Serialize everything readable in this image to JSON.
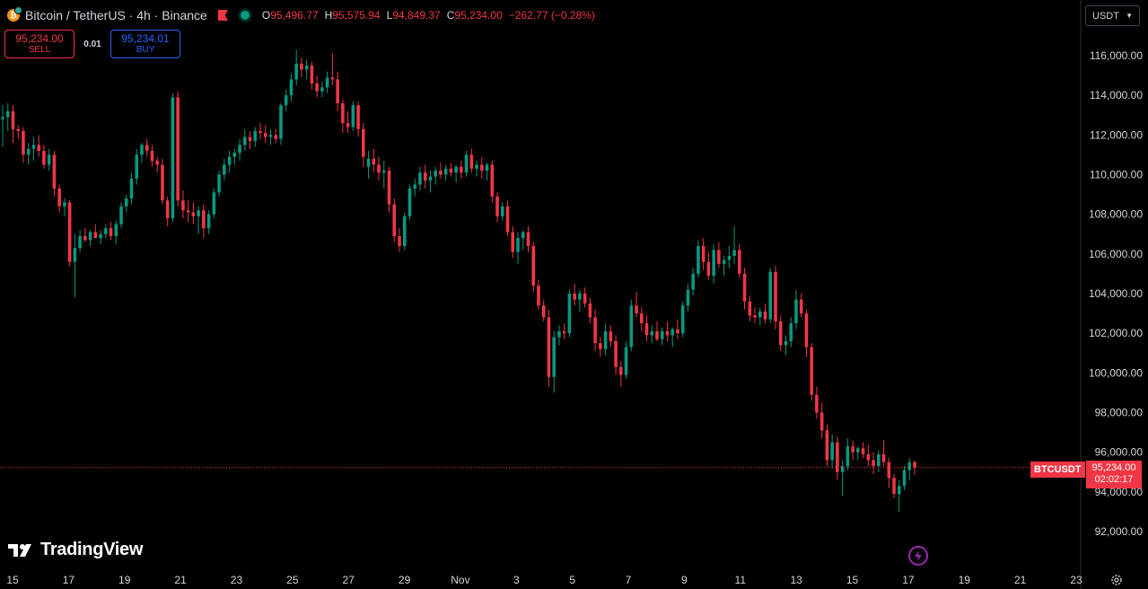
{
  "header": {
    "symbol_title": "Bitcoin / TetherUS · 4h · Binance",
    "coin_letter": "₿",
    "ohlc": {
      "open_label": "O",
      "open": "95,496.77",
      "high_label": "H",
      "high": "95,575.94",
      "low_label": "L",
      "low": "94,849.37",
      "close_label": "C",
      "close": "95,234.00",
      "change": "−262.77 (−0.28%)"
    }
  },
  "trade_panel": {
    "sell_price": "95,234.00",
    "sell_label": "SELL",
    "spread": "0.01",
    "buy_price": "95,234.01",
    "buy_label": "BUY"
  },
  "currency_selector": "USDT",
  "price_tag": {
    "symbol": "BTCUSDT",
    "price": "95,234.00",
    "countdown": "02:02:17"
  },
  "branding": {
    "logo_text": "TradingView"
  },
  "colors": {
    "up": "#089981",
    "down": "#f23645",
    "background": "#000000",
    "axis_text": "#d1d4dc"
  },
  "chart_data": {
    "type": "candlestick",
    "symbol": "BTCUSDT",
    "timeframe": "4h",
    "y_axis_ticks": [
      "116,000.00",
      "114,000.00",
      "112,000.00",
      "110,000.00",
      "108,000.00",
      "106,000.00",
      "104,000.00",
      "102,000.00",
      "100,000.00",
      "98,000.00",
      "96,000.00",
      "94,000.00",
      "92,000.00"
    ],
    "x_axis_ticks": [
      "15",
      "17",
      "19",
      "21",
      "23",
      "25",
      "27",
      "29",
      "Nov",
      "3",
      "5",
      "7",
      "9",
      "11",
      "13",
      "15",
      "17",
      "19",
      "21",
      "23"
    ],
    "ylim": [
      90500,
      118200
    ],
    "last_price": 95234.0,
    "candles": [
      [
        112800,
        113500,
        111400,
        112900
      ],
      [
        112900,
        113600,
        112200,
        113200
      ],
      [
        113200,
        113500,
        111600,
        112300
      ],
      [
        112300,
        112500,
        111800,
        112200
      ],
      [
        112200,
        112400,
        110600,
        111000
      ],
      [
        111000,
        111600,
        110500,
        111300
      ],
      [
        111300,
        111900,
        110700,
        111500
      ],
      [
        111500,
        112000,
        110900,
        111200
      ],
      [
        111200,
        111500,
        110300,
        110500
      ],
      [
        110500,
        111300,
        110200,
        111000
      ],
      [
        111000,
        111200,
        108900,
        109300
      ],
      [
        109300,
        109500,
        108100,
        108400
      ],
      [
        108400,
        108800,
        107900,
        108600
      ],
      [
        108600,
        108700,
        105400,
        105600
      ],
      [
        105600,
        107000,
        103800,
        106300
      ],
      [
        106300,
        107200,
        106100,
        106900
      ],
      [
        106900,
        107300,
        106600,
        106700
      ],
      [
        106700,
        107200,
        106400,
        107100
      ],
      [
        107100,
        107500,
        106800,
        106800
      ],
      [
        106800,
        107200,
        106500,
        107000
      ],
      [
        107000,
        107500,
        106800,
        107300
      ],
      [
        107300,
        107600,
        106700,
        106900
      ],
      [
        106900,
        107700,
        106500,
        107500
      ],
      [
        107500,
        108600,
        107300,
        108400
      ],
      [
        108400,
        109000,
        108100,
        108800
      ],
      [
        108800,
        110100,
        108500,
        109800
      ],
      [
        109800,
        111300,
        109500,
        111000
      ],
      [
        111000,
        111600,
        110600,
        111500
      ],
      [
        111500,
        111800,
        110900,
        111200
      ],
      [
        111200,
        111500,
        110400,
        110700
      ],
      [
        110700,
        110900,
        110100,
        110500
      ],
      [
        110500,
        110800,
        108500,
        108700
      ],
      [
        108700,
        108900,
        107400,
        107800
      ],
      [
        107800,
        114100,
        107600,
        113900
      ],
      [
        113900,
        114200,
        108400,
        108700
      ],
      [
        108700,
        109200,
        107800,
        108200
      ],
      [
        108200,
        108700,
        107600,
        108100
      ],
      [
        108100,
        108600,
        107500,
        107900
      ],
      [
        107900,
        108400,
        107000,
        108200
      ],
      [
        108200,
        108500,
        106800,
        107300
      ],
      [
        107300,
        108200,
        107000,
        108000
      ],
      [
        108000,
        109300,
        107800,
        109100
      ],
      [
        109100,
        110200,
        108900,
        110000
      ],
      [
        110000,
        110800,
        109700,
        110500
      ],
      [
        110500,
        111200,
        110100,
        110900
      ],
      [
        110900,
        111300,
        110500,
        111100
      ],
      [
        111100,
        111800,
        110700,
        111500
      ],
      [
        111500,
        112300,
        111200,
        111900
      ],
      [
        111900,
        112200,
        111300,
        111700
      ],
      [
        111700,
        112400,
        111400,
        112200
      ],
      [
        112200,
        112600,
        111800,
        112100
      ],
      [
        112100,
        112500,
        111600,
        111900
      ],
      [
        111900,
        112300,
        111500,
        112000
      ],
      [
        112000,
        112300,
        111600,
        111800
      ],
      [
        111800,
        113600,
        111500,
        113500
      ],
      [
        113500,
        114300,
        113200,
        114000
      ],
      [
        114000,
        115100,
        113700,
        114800
      ],
      [
        114800,
        116300,
        114500,
        115600
      ],
      [
        115600,
        115900,
        114900,
        115300
      ],
      [
        115300,
        115800,
        114800,
        115500
      ],
      [
        115500,
        115700,
        114300,
        114600
      ],
      [
        114600,
        115000,
        113900,
        114200
      ],
      [
        114200,
        114700,
        113900,
        114400
      ],
      [
        114400,
        115200,
        114100,
        114900
      ],
      [
        114900,
        116100,
        114500,
        114800
      ],
      [
        114800,
        115200,
        113200,
        113600
      ],
      [
        113600,
        113800,
        112100,
        112600
      ],
      [
        112600,
        113200,
        112100,
        112400
      ],
      [
        112400,
        113700,
        112200,
        113500
      ],
      [
        113500,
        113700,
        111900,
        112300
      ],
      [
        112300,
        112600,
        110400,
        110900
      ],
      [
        110400,
        111200,
        109800,
        110800
      ],
      [
        110800,
        111300,
        110100,
        110500
      ],
      [
        110500,
        110900,
        109700,
        110100
      ],
      [
        110100,
        110700,
        109300,
        110200
      ],
      [
        110200,
        110400,
        108100,
        108500
      ],
      [
        108500,
        108800,
        106600,
        106900
      ],
      [
        106900,
        107300,
        106100,
        106400
      ],
      [
        106400,
        108100,
        106200,
        107900
      ],
      [
        107900,
        109500,
        107700,
        109300
      ],
      [
        109300,
        109800,
        108900,
        109500
      ],
      [
        109500,
        110400,
        109200,
        110100
      ],
      [
        110100,
        110500,
        109300,
        109700
      ],
      [
        109700,
        110200,
        109100,
        109900
      ],
      [
        109900,
        110400,
        109500,
        110200
      ],
      [
        110200,
        110600,
        109800,
        110000
      ],
      [
        110000,
        110500,
        109700,
        110300
      ],
      [
        110300,
        110600,
        109900,
        110100
      ],
      [
        110100,
        110500,
        109600,
        110400
      ],
      [
        110400,
        110700,
        109800,
        110100
      ],
      [
        110100,
        111200,
        109900,
        111000
      ],
      [
        111000,
        111300,
        110100,
        110300
      ],
      [
        110300,
        110700,
        109900,
        110500
      ],
      [
        110500,
        110900,
        109800,
        110200
      ],
      [
        110200,
        110600,
        109700,
        110500
      ],
      [
        110500,
        110700,
        108600,
        108900
      ],
      [
        108900,
        109100,
        107600,
        107900
      ],
      [
        107900,
        108600,
        107700,
        108400
      ],
      [
        108400,
        108700,
        106900,
        107100
      ],
      [
        107100,
        107400,
        105800,
        106100
      ],
      [
        106100,
        107100,
        105500,
        106800
      ],
      [
        106800,
        107200,
        106200,
        107100
      ],
      [
        107100,
        107400,
        106100,
        106400
      ],
      [
        106400,
        106600,
        104100,
        104400
      ],
      [
        104400,
        104700,
        103200,
        103400
      ],
      [
        103400,
        103700,
        102600,
        102800
      ],
      [
        102800,
        103200,
        99300,
        99800
      ],
      [
        99800,
        102100,
        99000,
        101800
      ],
      [
        101800,
        102400,
        101400,
        102100
      ],
      [
        102100,
        102500,
        101700,
        102000
      ],
      [
        102000,
        104200,
        101800,
        104000
      ],
      [
        104000,
        104500,
        103400,
        103700
      ],
      [
        103700,
        104200,
        103100,
        104000
      ],
      [
        104000,
        104300,
        103300,
        103500
      ],
      [
        103500,
        103800,
        102500,
        102800
      ],
      [
        102800,
        103200,
        101100,
        101500
      ],
      [
        101500,
        101800,
        100800,
        101200
      ],
      [
        101200,
        102500,
        100900,
        102100
      ],
      [
        102100,
        102400,
        101300,
        101600
      ],
      [
        101600,
        101900,
        99900,
        100300
      ],
      [
        100300,
        100600,
        99300,
        99900
      ],
      [
        99900,
        101600,
        99700,
        101300
      ],
      [
        101300,
        103700,
        101100,
        103400
      ],
      [
        103400,
        104100,
        102800,
        103000
      ],
      [
        103000,
        103300,
        102100,
        102500
      ],
      [
        102500,
        102900,
        101600,
        101900
      ],
      [
        101900,
        102400,
        101500,
        102100
      ],
      [
        102100,
        102600,
        101600,
        101700
      ],
      [
        101700,
        102300,
        101400,
        102100
      ],
      [
        102100,
        102600,
        101600,
        101900
      ],
      [
        101900,
        102300,
        101300,
        102200
      ],
      [
        102200,
        102700,
        101700,
        102000
      ],
      [
        102000,
        103600,
        101800,
        103400
      ],
      [
        103400,
        104500,
        103100,
        104200
      ],
      [
        104200,
        105300,
        103900,
        105000
      ],
      [
        105000,
        106700,
        104800,
        106400
      ],
      [
        106400,
        106800,
        105200,
        105600
      ],
      [
        105600,
        106100,
        104700,
        104900
      ],
      [
        104900,
        106500,
        104500,
        106200
      ],
      [
        106200,
        106600,
        105300,
        105500
      ],
      [
        105500,
        105900,
        104900,
        105700
      ],
      [
        105700,
        106400,
        105300,
        105900
      ],
      [
        105900,
        107400,
        105500,
        106200
      ],
      [
        106200,
        106500,
        104800,
        105000
      ],
      [
        105000,
        105300,
        103200,
        103600
      ],
      [
        103600,
        103900,
        102600,
        102900
      ],
      [
        102900,
        103300,
        102500,
        102800
      ],
      [
        102800,
        103300,
        102400,
        103100
      ],
      [
        103100,
        103500,
        102500,
        102700
      ],
      [
        102700,
        105300,
        102500,
        105100
      ],
      [
        105100,
        105400,
        102200,
        102600
      ],
      [
        102600,
        102900,
        101100,
        101400
      ],
      [
        101400,
        101900,
        100900,
        101600
      ],
      [
        101600,
        102800,
        101300,
        102500
      ],
      [
        102500,
        104200,
        102200,
        103700
      ],
      [
        103700,
        104000,
        102800,
        103000
      ],
      [
        103000,
        103200,
        100800,
        101300
      ],
      [
        101300,
        101500,
        98600,
        98900
      ],
      [
        98900,
        99300,
        97700,
        98000
      ],
      [
        98000,
        98500,
        96700,
        97100
      ],
      [
        97100,
        97400,
        95300,
        95600
      ],
      [
        95600,
        96900,
        95200,
        96500
      ],
      [
        96500,
        96800,
        94600,
        95000
      ],
      [
        95000,
        95600,
        93800,
        95300
      ],
      [
        95300,
        96700,
        95100,
        96300
      ],
      [
        96300,
        96600,
        95600,
        96000
      ],
      [
        96000,
        96300,
        95600,
        96200
      ],
      [
        96200,
        96500,
        95700,
        95900
      ],
      [
        95900,
        96400,
        95300,
        95600
      ],
      [
        95600,
        96000,
        94900,
        95300
      ],
      [
        95300,
        96100,
        95000,
        95900
      ],
      [
        95900,
        96600,
        95300,
        95500
      ],
      [
        95500,
        95700,
        94200,
        94700
      ],
      [
        94700,
        94900,
        93700,
        93900
      ],
      [
        93900,
        94600,
        93000,
        94300
      ],
      [
        94300,
        95300,
        94100,
        95100
      ],
      [
        95100,
        95700,
        94600,
        95496.77
      ],
      [
        95496.77,
        95575.94,
        94849.37,
        95234.0
      ]
    ]
  }
}
